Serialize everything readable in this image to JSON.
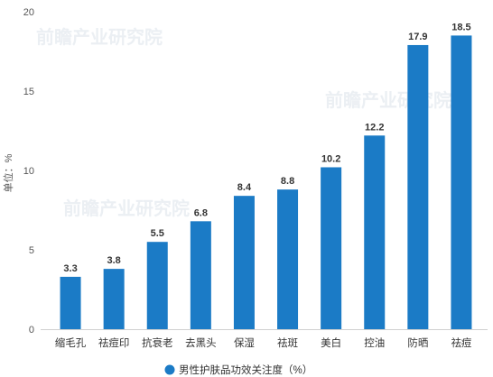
{
  "watermark": "前瞻产业研究院",
  "chart_data": {
    "type": "bar",
    "categories": [
      "缩毛孔",
      "祛痘印",
      "抗衰老",
      "去黑头",
      "保湿",
      "祛斑",
      "美白",
      "控油",
      "防晒",
      "祛痘"
    ],
    "series": [
      {
        "name": "男性护肤品功效关注度（%）",
        "values": [
          3.3,
          3.8,
          5.5,
          6.8,
          8.4,
          8.8,
          10.2,
          12.2,
          17.9,
          18.5
        ]
      }
    ],
    "title": "",
    "xlabel": "",
    "ylabel": "单位：%",
    "ylim": [
      0,
      20
    ],
    "yticks": [
      0,
      5,
      10,
      15,
      20
    ],
    "grid": false,
    "data_labels": true,
    "legend": "bottom-center",
    "bar_color": "#1b7bc6",
    "axis_color": "#d0d0d0"
  }
}
